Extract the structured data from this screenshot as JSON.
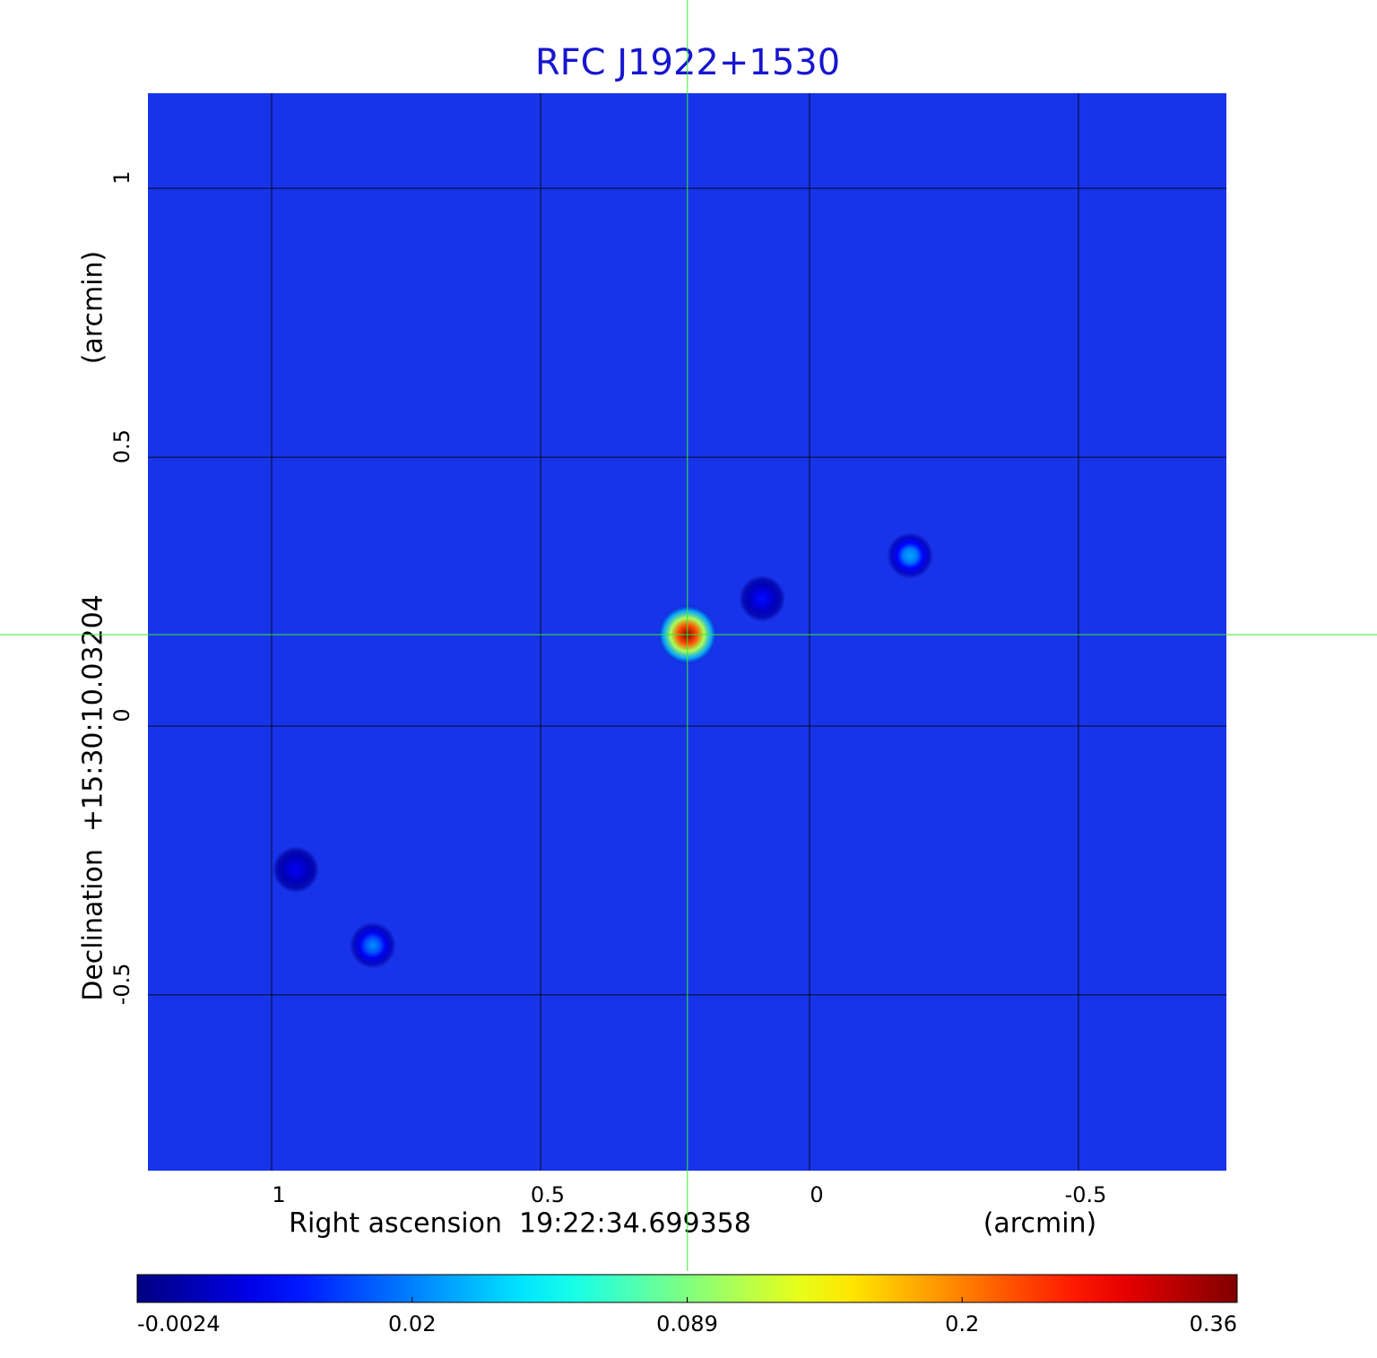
{
  "chart_data": {
    "type": "image",
    "title": "RFC J1922+1530",
    "x_label": "Right ascension  19:22:34.699358",
    "x_unit": "(arcmin)",
    "y_label": "Declination  +15:30:10.03204",
    "y_unit": "(arcmin)",
    "xlim": [
      1.23,
      -0.775
    ],
    "ylim": [
      -0.827,
      1.177
    ],
    "xticks": [
      1.0,
      0.5,
      0.0,
      -0.5
    ],
    "yticks": [
      1.0,
      0.5,
      0.0,
      -0.5
    ],
    "grid": true,
    "crosshair": {
      "x": 0.227,
      "y": 0.17
    },
    "sources": {
      "x": [
        0.227,
        -0.187,
        0.812,
        0.088,
        0.955
      ],
      "y": [
        0.17,
        0.317,
        -0.408,
        0.237,
        -0.267
      ],
      "values": [
        0.36,
        0.03,
        0.025,
        0.01,
        0.008
      ]
    },
    "colorbar": {
      "ticks": [
        -0.0024,
        0.02,
        0.089,
        0.2,
        0.36
      ]
    }
  }
}
